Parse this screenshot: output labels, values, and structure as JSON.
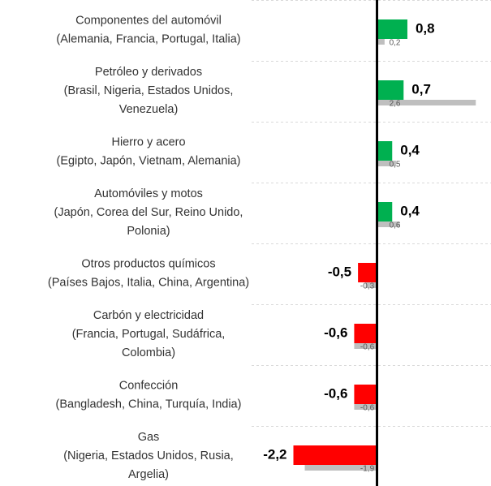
{
  "chart_data": {
    "type": "hbar",
    "categories": [
      [
        "Componentes del automóvil",
        "(Alemania, Francia, Portugal, Italia)"
      ],
      [
        "Petróleo y derivados",
        "(Brasil, Nigeria, Estados Unidos,",
        "Venezuela)"
      ],
      [
        "Hierro y acero",
        "(Egipto, Japón, Vietnam, Alemania)"
      ],
      [
        "Automóviles y motos",
        "(Japón, Corea del Sur, Reino Unido,",
        "Polonia)"
      ],
      [
        "Otros productos químicos",
        "(Países Bajos, Italia, China, Argentina)"
      ],
      [
        "Carbón y electricidad",
        "(Francia, Portugal, Sudáfrica,",
        "Colombia)"
      ],
      [
        "Confección",
        "(Bangladesh, China, Turquía, India)"
      ],
      [
        "Gas",
        "(Nigeria, Estados Unidos, Rusia,",
        "Argelia)"
      ]
    ],
    "series": [
      {
        "color": "#00b050",
        "negative_color": "#ff0000",
        "values": [
          0.8,
          0.7,
          0.4,
          0.4,
          -0.5,
          -0.6,
          -0.6,
          -2.2
        ],
        "value_labels": [
          "0,8",
          "0,7",
          "0,4",
          "0,4",
          "-0,5",
          "-0,6",
          "-0,6",
          "-2,2"
        ]
      },
      {
        "color": "#bfbfbf",
        "values": [
          0.2,
          2.6,
          0.5,
          0.6,
          -0.3,
          -0.6,
          -0.6,
          -1.9
        ],
        "value_labels": [
          "0,2",
          "2,6",
          "0,5",
          "0,6",
          "-0,3",
          "-0,6",
          "-0,6",
          "-1,9"
        ]
      }
    ],
    "xlim": [
      -3.3,
      3.0
    ]
  }
}
